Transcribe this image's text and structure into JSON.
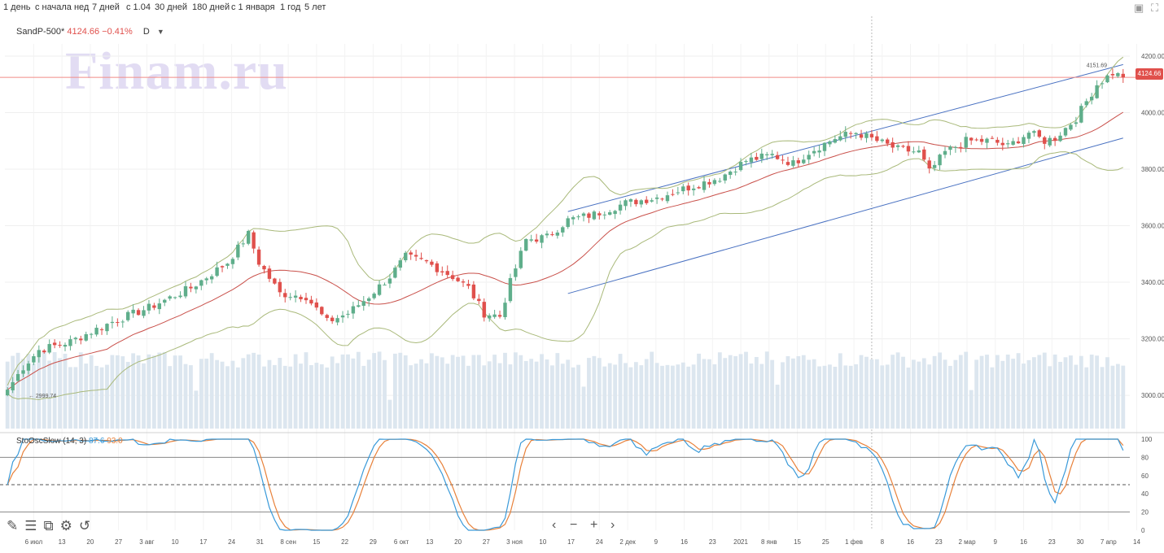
{
  "toolbar": {
    "periods": [
      "1 день",
      "с начала нед",
      "7 дней",
      "с 1.04",
      "30 дней",
      "180 дней",
      "с 1 января",
      "1 год",
      "5 лет"
    ],
    "save_icon": "save-icon",
    "fullscreen_icon": "fullscreen-icon"
  },
  "legend": {
    "symbol": "SandP-500*",
    "value": "4124.66 −0.41%",
    "timeframe": "D"
  },
  "watermark": "Finam.ru",
  "last_price_tag": "4124.66",
  "stoch": {
    "name": "StoOscSlow (14, 3)",
    "k": "87.6",
    "d": "93.0"
  },
  "colors": {
    "up": "#5fae8b",
    "down": "#e0504c",
    "volume": "#dce6ef",
    "bb": "#a9b97a",
    "ma": "#c9504a",
    "channel": "#4a72c2",
    "k": "#3a9ad9",
    "d": "#e8813a"
  },
  "bottom_tools": [
    "pencil-icon",
    "list-icon",
    "layers-icon",
    "settings-icon",
    "undo-icon"
  ],
  "nav": [
    "‹",
    "−",
    "+",
    "›"
  ],
  "chart_data": [
    {
      "type": "candlestick",
      "title": "",
      "x_tick_labels": [
        "6 июл",
        "13",
        "20",
        "27",
        "3 авг",
        "10",
        "17",
        "24",
        "31",
        "8 сен",
        "15",
        "22",
        "29",
        "6 окт",
        "13",
        "20",
        "27",
        "3 ноя",
        "10",
        "17",
        "24",
        "2 дек",
        "9",
        "16",
        "23",
        "2021",
        "8 янв",
        "15",
        "25",
        "1 фев",
        "8",
        "16",
        "23",
        "2 мар",
        "9",
        "16",
        "23",
        "30",
        "7 апр",
        "14"
      ],
      "y_ticks": [
        3000,
        3200,
        3400,
        3600,
        3800,
        4000,
        4200
      ],
      "ylim": [
        2960,
        4220
      ],
      "annotations": [
        {
          "label": "4151.69",
          "value": 4151.69
        },
        {
          "label": "2999.74",
          "value": 2999.74
        }
      ],
      "horizontal_line": 4124.66,
      "anchors": [
        [
          0,
          3020
        ],
        [
          3,
          3100
        ],
        [
          6,
          3160
        ],
        [
          12,
          3190
        ],
        [
          20,
          3260
        ],
        [
          27,
          3310
        ],
        [
          35,
          3380
        ],
        [
          42,
          3470
        ],
        [
          46,
          3570
        ],
        [
          48,
          3470
        ],
        [
          52,
          3360
        ],
        [
          57,
          3350
        ],
        [
          61,
          3260
        ],
        [
          65,
          3290
        ],
        [
          69,
          3350
        ],
        [
          73,
          3420
        ],
        [
          76,
          3490
        ],
        [
          80,
          3470
        ],
        [
          85,
          3420
        ],
        [
          88,
          3380
        ],
        [
          91,
          3290
        ],
        [
          94,
          3280
        ],
        [
          96,
          3400
        ],
        [
          99,
          3550
        ],
        [
          103,
          3560
        ],
        [
          107,
          3620
        ],
        [
          112,
          3640
        ],
        [
          118,
          3680
        ],
        [
          124,
          3700
        ],
        [
          129,
          3730
        ],
        [
          136,
          3770
        ],
        [
          141,
          3830
        ],
        [
          146,
          3850
        ],
        [
          150,
          3820
        ],
        [
          153,
          3860
        ],
        [
          158,
          3910
        ],
        [
          162,
          3930
        ],
        [
          166,
          3900
        ],
        [
          170,
          3870
        ],
        [
          174,
          3860
        ],
        [
          176,
          3790
        ],
        [
          179,
          3860
        ],
        [
          183,
          3900
        ],
        [
          188,
          3900
        ],
        [
          191,
          3880
        ],
        [
          195,
          3930
        ],
        [
          198,
          3900
        ],
        [
          200,
          3910
        ],
        [
          204,
          3980
        ],
        [
          208,
          4100
        ],
        [
          211,
          4140
        ],
        [
          213,
          4124.66
        ]
      ]
    },
    {
      "type": "line",
      "name": "StoOscSlow (14, 3)",
      "ylim": [
        0,
        100
      ],
      "y_ticks": [
        0,
        20,
        40,
        60,
        80,
        100
      ],
      "levels": [
        20,
        50,
        80
      ],
      "k_last": 87.6,
      "d_last": 93.0
    }
  ]
}
